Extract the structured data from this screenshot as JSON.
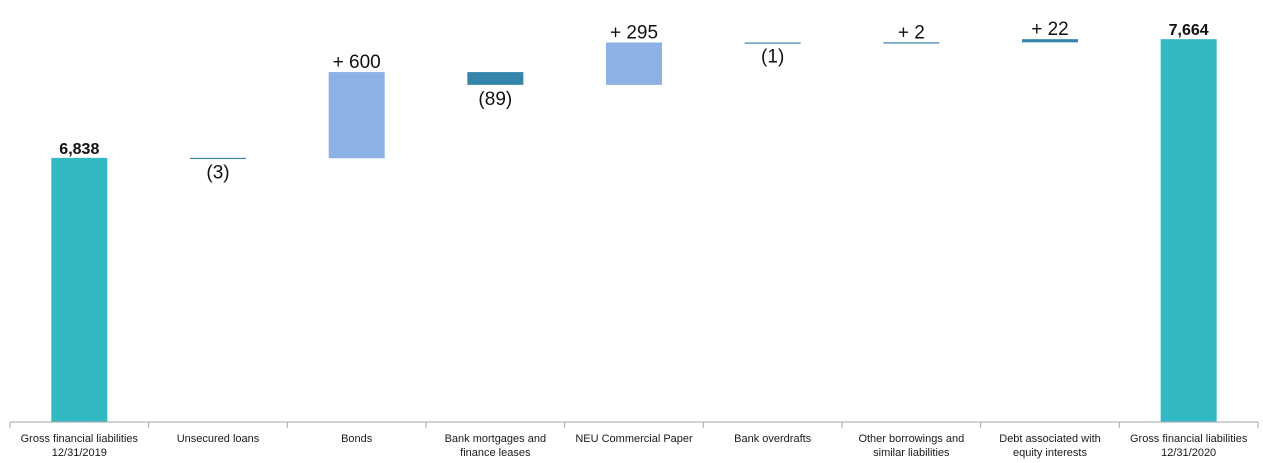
{
  "chart_data": {
    "type": "bar",
    "subtype": "waterfall",
    "categories": [
      [
        "Gross financial liabilities",
        "12/31/2019"
      ],
      [
        "Unsecured loans"
      ],
      [
        "Bonds"
      ],
      [
        "Bank mortgages and",
        "finance leases"
      ],
      [
        "NEU Commercial Paper"
      ],
      [
        "Bank overdrafts"
      ],
      [
        "Other borrowings and",
        "similar liabilities"
      ],
      [
        "Debt associated with",
        "equity interests"
      ],
      [
        "Gross financial liabilities",
        "12/31/2020"
      ]
    ],
    "values": [
      6838,
      -3,
      600,
      -89,
      295,
      -1,
      2,
      22,
      7664
    ],
    "kinds": [
      "total",
      "delta",
      "delta",
      "delta",
      "delta",
      "delta",
      "delta",
      "delta",
      "total"
    ],
    "data_labels": [
      "6,838",
      "(3)",
      "+ 600",
      "(89)",
      "+ 295",
      "(1)",
      "+ 2",
      "+ 22",
      "7,664"
    ],
    "ylim": [
      5000,
      7700
    ],
    "title": "",
    "xlabel": "",
    "ylabel": "",
    "grid": false,
    "colors": {
      "total": "#32b9c4",
      "increase_large": "#8eb1e3",
      "small_change": "#3586aa",
      "axis": "#a6a6a6"
    }
  }
}
